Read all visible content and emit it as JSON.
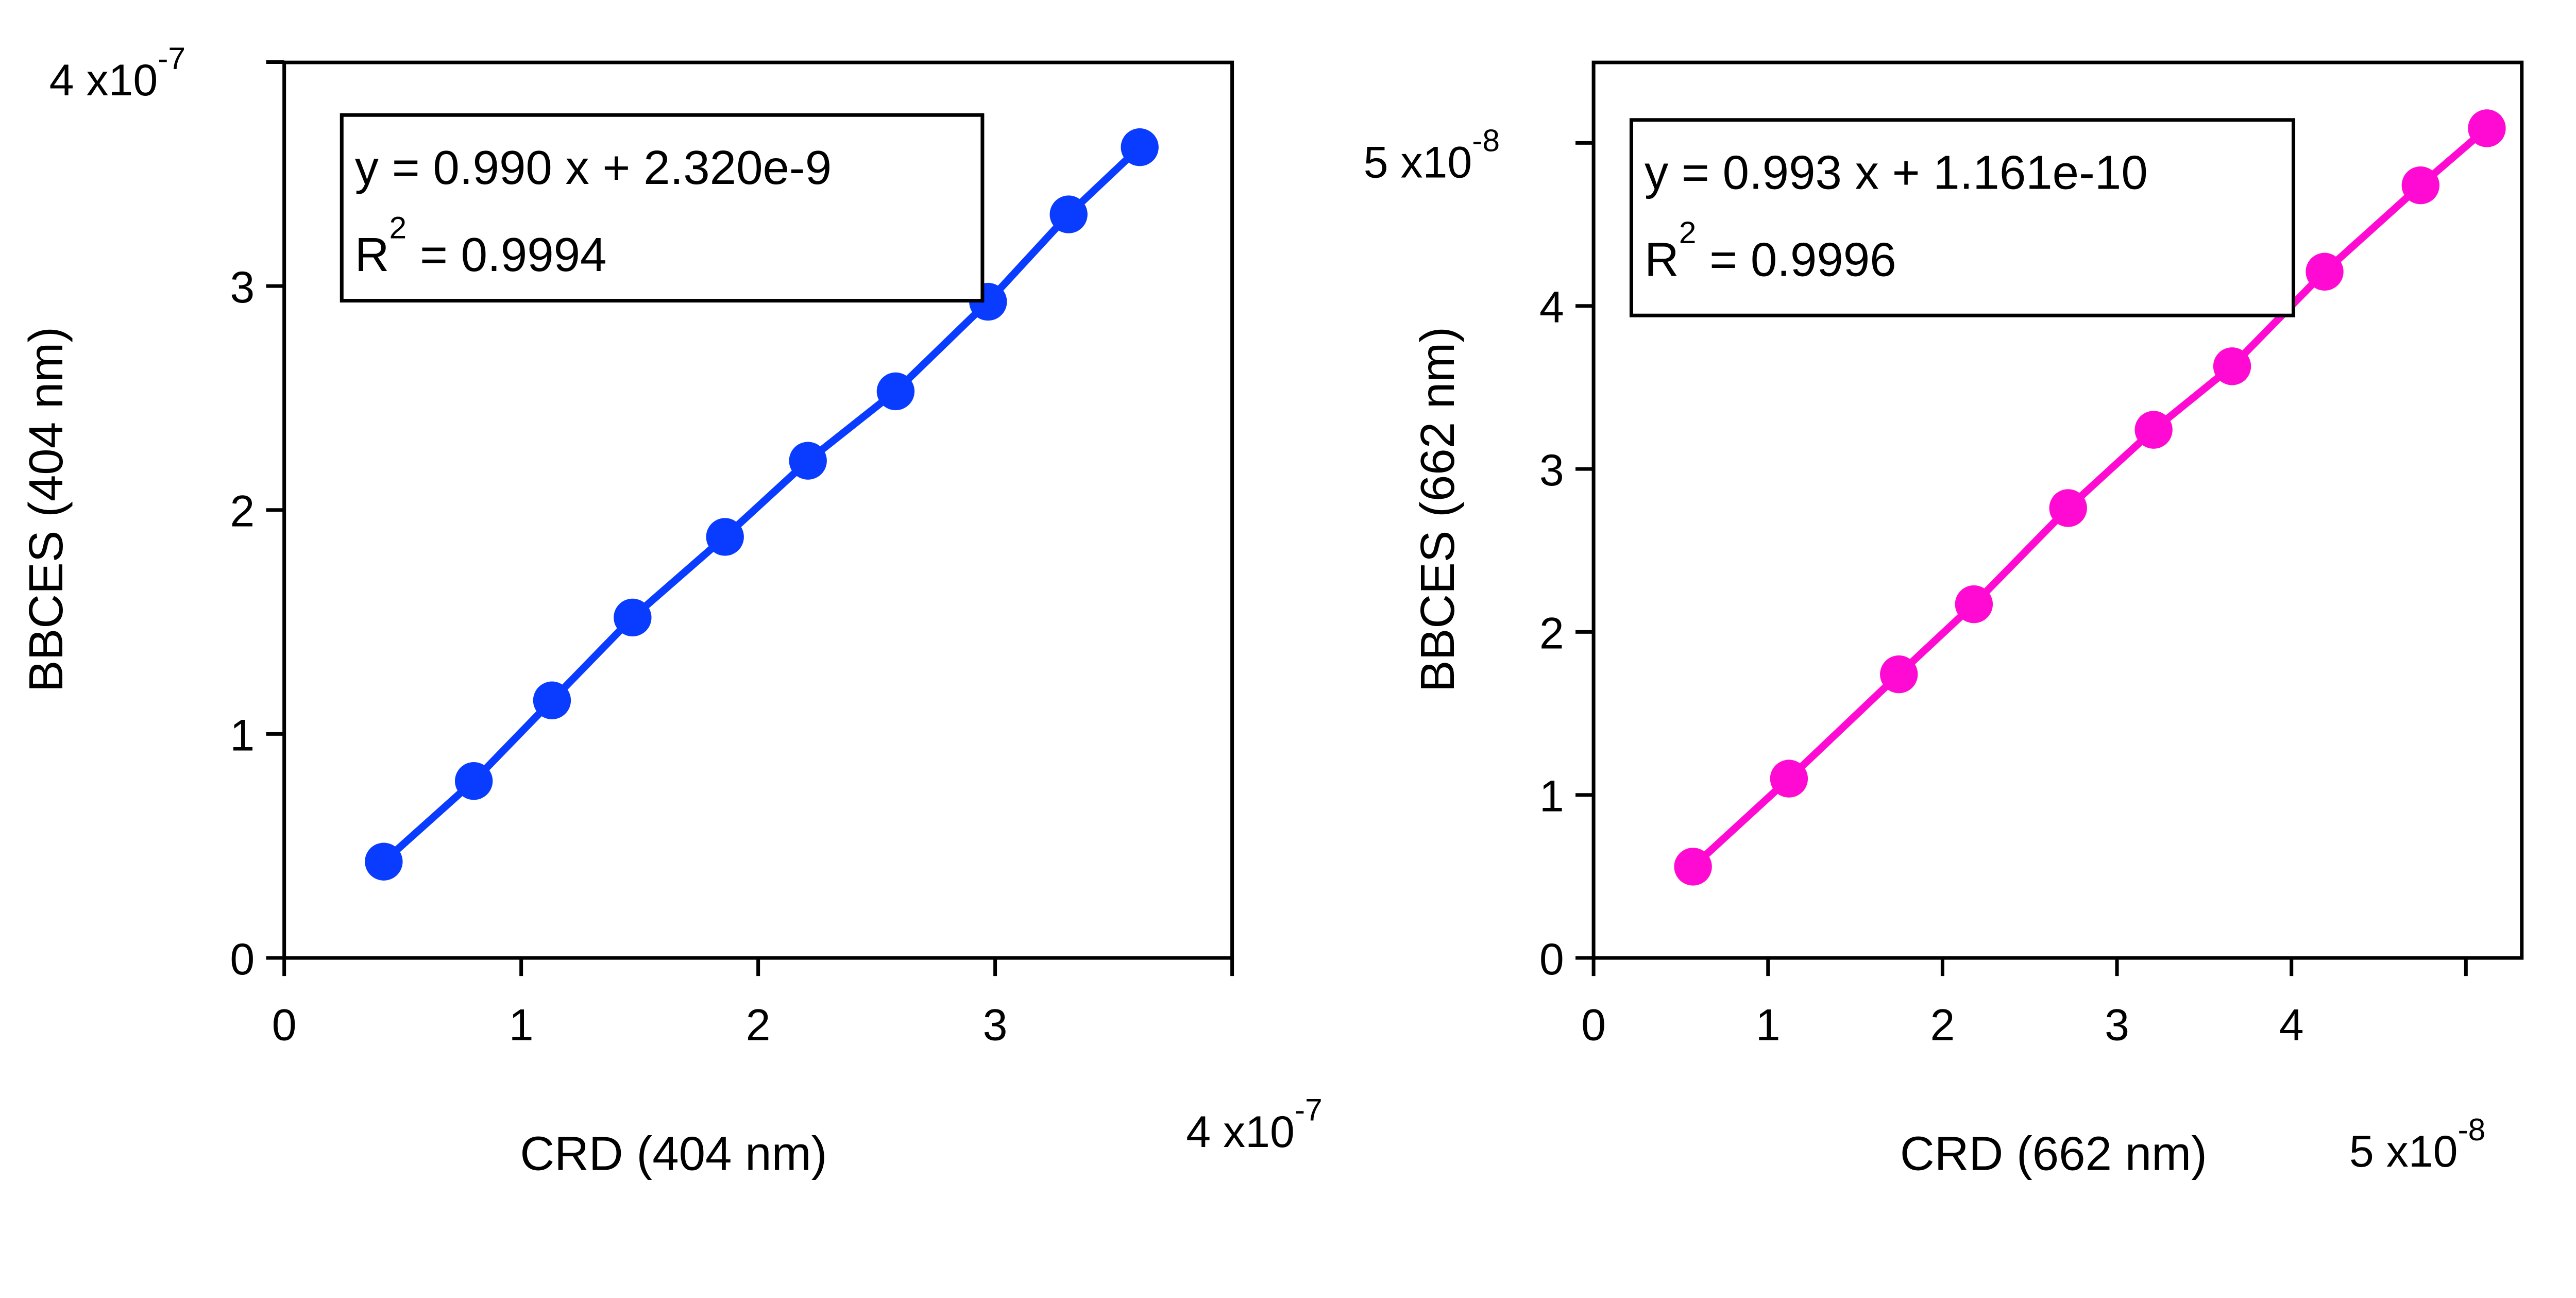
{
  "chart_data": [
    {
      "type": "line",
      "title": "",
      "xlabel": "CRD (404 nm)",
      "ylabel": "BBCES (404 nm)",
      "x_multiplier": {
        "base": "4 x10",
        "exp": "-7"
      },
      "y_multiplier": {
        "base": "4 x10",
        "exp": "-7"
      },
      "scale": "1e-7",
      "xlim": [
        0,
        4
      ],
      "ylim": [
        0,
        4
      ],
      "xticks": [
        "0",
        "1",
        "2",
        "3"
      ],
      "yticks": [
        "0",
        "1",
        "2",
        "3"
      ],
      "color": "#0a3cff",
      "x": [
        0.42,
        0.8,
        1.13,
        1.47,
        1.86,
        2.21,
        2.58,
        2.97,
        3.31,
        3.61
      ],
      "y": [
        0.43,
        0.79,
        1.15,
        1.52,
        1.88,
        2.22,
        2.53,
        2.93,
        3.32,
        3.62
      ],
      "annotation": {
        "line1": "y = 0.990 x + 2.320e-9",
        "r_label": "R",
        "r_exp": "2",
        "r_value": " = 0.9994"
      },
      "grid": false
    },
    {
      "type": "line",
      "title": "",
      "xlabel": "CRD (662 nm)",
      "ylabel": "BBCES (662 nm)",
      "x_multiplier": {
        "base": "5 x10",
        "exp": "-8"
      },
      "y_multiplier": {
        "base": "5 x10",
        "exp": "-8"
      },
      "scale": "1e-8",
      "xlim": [
        0,
        5.32
      ],
      "ylim": [
        0,
        5.5
      ],
      "xticks": [
        "0",
        "1",
        "2",
        "3",
        "4"
      ],
      "yticks": [
        "0",
        "1",
        "2",
        "3",
        "4"
      ],
      "color": "#ff0ad2",
      "x": [
        0.57,
        1.12,
        1.75,
        2.18,
        2.72,
        3.21,
        3.66,
        4.19,
        4.74,
        5.12
      ],
      "y": [
        0.56,
        1.1,
        1.74,
        2.17,
        2.76,
        3.24,
        3.63,
        4.21,
        4.74,
        5.09
      ],
      "annotation": {
        "line1": "y = 0.993 x + 1.161e-10",
        "r_label": "R",
        "r_exp": "2",
        "r_value": " = 0.9996"
      },
      "grid": false
    }
  ]
}
